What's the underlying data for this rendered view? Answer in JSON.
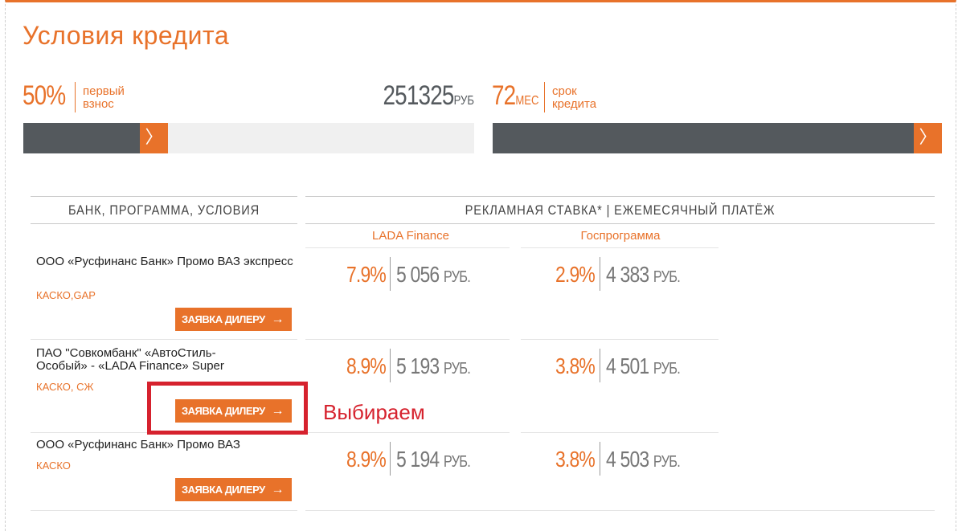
{
  "title": "Условия кредита",
  "down_payment": {
    "percent": "50%",
    "label_line1": "первый",
    "label_line2": "взнос",
    "amount": "251325",
    "amount_unit": "РУБ",
    "slider_fraction": 0.5
  },
  "term": {
    "value": "72",
    "unit": "МЕС",
    "label_line1": "срок",
    "label_line2": "кредита",
    "slider_fraction": 1.0
  },
  "slider_handle_glyph": "〉",
  "table": {
    "col_bank": "БАНК, ПРОГРАММА, УСЛОВИЯ",
    "col_rates": "РЕКЛАМНАЯ СТАВКА* | ЕЖЕМЕСЯЧНЫЙ ПЛАТЁЖ",
    "sub_lada": "LADA Finance",
    "sub_gos": "Госпрограмма",
    "rows": [
      {
        "bank": "ООО «Русфинанс Банк» Промо ВАЗ экспресс",
        "conditions": "КАСКО,GAP",
        "button": "ЗАЯВКА ДИЛЕРУ",
        "lada_rate": "7.9%",
        "lada_payment": "5 056",
        "gos_rate": "2.9%",
        "gos_payment": "4 383"
      },
      {
        "bank": "ПАО \"Совкомбанк\" «АвтоСтиль-Особый» - «LADA Finance» Super",
        "conditions": "КАСКО, СЖ",
        "button": "ЗАЯВКА ДИЛЕРУ",
        "lada_rate": "8.9%",
        "lada_payment": "5 193",
        "gos_rate": "3.8%",
        "gos_payment": "4 501"
      },
      {
        "bank": "ООО «Русфинанс Банк» Промо ВАЗ",
        "conditions": "КАСКО",
        "button": "ЗАЯВКА ДИЛЕРУ",
        "lada_rate": "8.9%",
        "lada_payment": "5 194",
        "gos_rate": "3.8%",
        "gos_payment": "4 503"
      }
    ],
    "currency": "РУБ."
  },
  "annotation": "Выбираем",
  "colors": {
    "accent": "#e8722a",
    "dark": "#54595d",
    "highlight": "#d6222e"
  }
}
